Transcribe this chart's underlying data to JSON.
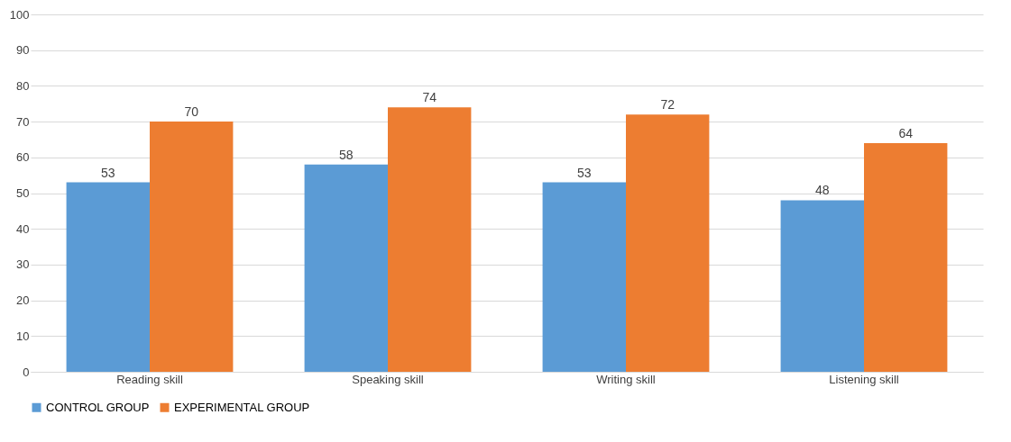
{
  "chart_data": {
    "type": "bar",
    "categories": [
      "Reading skill",
      "Speaking skill",
      "Writing skill",
      "Listening skill"
    ],
    "series": [
      {
        "name": "CONTROL GROUP",
        "color": "#5b9bd5",
        "values": [
          53,
          58,
          53,
          48
        ]
      },
      {
        "name": "EXPERIMENTAL GROUP",
        "color": "#ed7d31",
        "values": [
          70,
          74,
          72,
          64
        ]
      }
    ],
    "ylim": [
      0,
      100
    ],
    "yticks": [
      0,
      10,
      20,
      30,
      40,
      50,
      60,
      70,
      80,
      90,
      100
    ],
    "grid": "y",
    "legend": "bottom",
    "data_labels": true
  }
}
